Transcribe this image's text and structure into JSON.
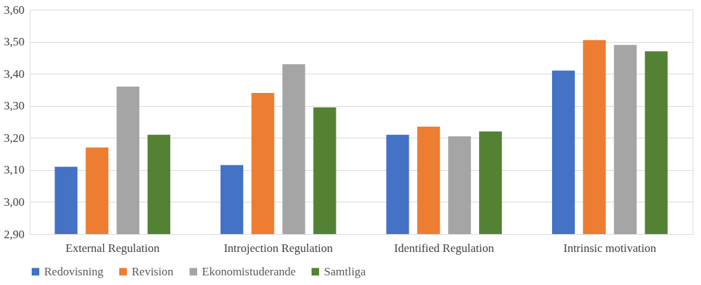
{
  "chart_data": {
    "type": "bar",
    "categories": [
      "External Regulation",
      "Introjection Regulation",
      "Identified Regulation",
      "Intrinsic motivation"
    ],
    "series": [
      {
        "name": "Redovisning",
        "color": "#4472c4",
        "values": [
          3.11,
          3.115,
          3.21,
          3.41
        ]
      },
      {
        "name": "Revision",
        "color": "#ed7d31",
        "values": [
          3.17,
          3.34,
          3.235,
          3.505
        ]
      },
      {
        "name": "Ekonomistuderande",
        "color": "#a5a5a5",
        "values": [
          3.36,
          3.43,
          3.205,
          3.49
        ]
      },
      {
        "name": "Samtliga",
        "color": "#548235",
        "values": [
          3.21,
          3.295,
          3.22,
          3.47
        ]
      }
    ],
    "ylim": [
      2.9,
      3.6
    ],
    "yticks": [
      {
        "value": 2.9,
        "label": "2,90"
      },
      {
        "value": 3.0,
        "label": "3,00"
      },
      {
        "value": 3.1,
        "label": "3,10"
      },
      {
        "value": 3.2,
        "label": "3,20"
      },
      {
        "value": 3.3,
        "label": "3,30"
      },
      {
        "value": 3.4,
        "label": "3,40"
      },
      {
        "value": 3.5,
        "label": "3,50"
      },
      {
        "value": 3.6,
        "label": "3,60"
      }
    ],
    "grid": "y",
    "legend": "bottom"
  }
}
